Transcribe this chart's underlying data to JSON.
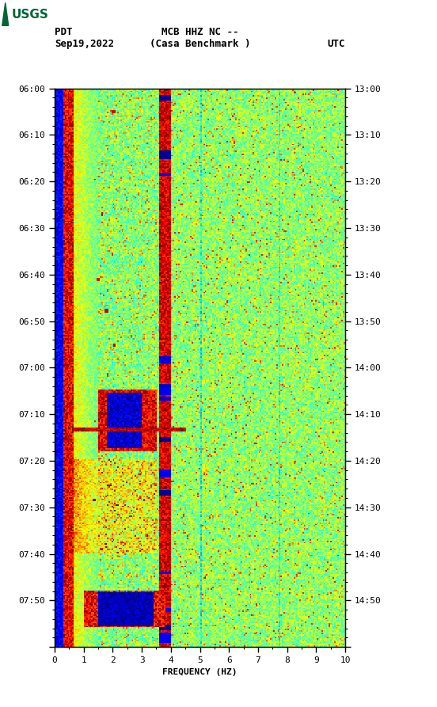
{
  "title_line1": "MCB HHZ NC --",
  "title_line2": "(Casa Benchmark )",
  "date_label": "Sep19,2022",
  "left_tz": "PDT",
  "right_tz": "UTC",
  "left_times": [
    "06:00",
    "06:10",
    "06:20",
    "06:30",
    "06:40",
    "06:50",
    "07:00",
    "07:10",
    "07:20",
    "07:30",
    "07:40",
    "07:50"
  ],
  "right_times": [
    "13:00",
    "13:10",
    "13:20",
    "13:30",
    "13:40",
    "13:50",
    "14:00",
    "14:10",
    "14:20",
    "14:30",
    "14:40",
    "14:50"
  ],
  "freq_min": 0,
  "freq_max": 10,
  "freq_ticks": [
    0,
    1,
    2,
    3,
    4,
    5,
    6,
    7,
    8,
    9,
    10
  ],
  "freq_label": "FREQUENCY (HZ)",
  "usgs_green": "#006633",
  "fig_width": 5.52,
  "fig_height": 8.93,
  "dpi": 100
}
